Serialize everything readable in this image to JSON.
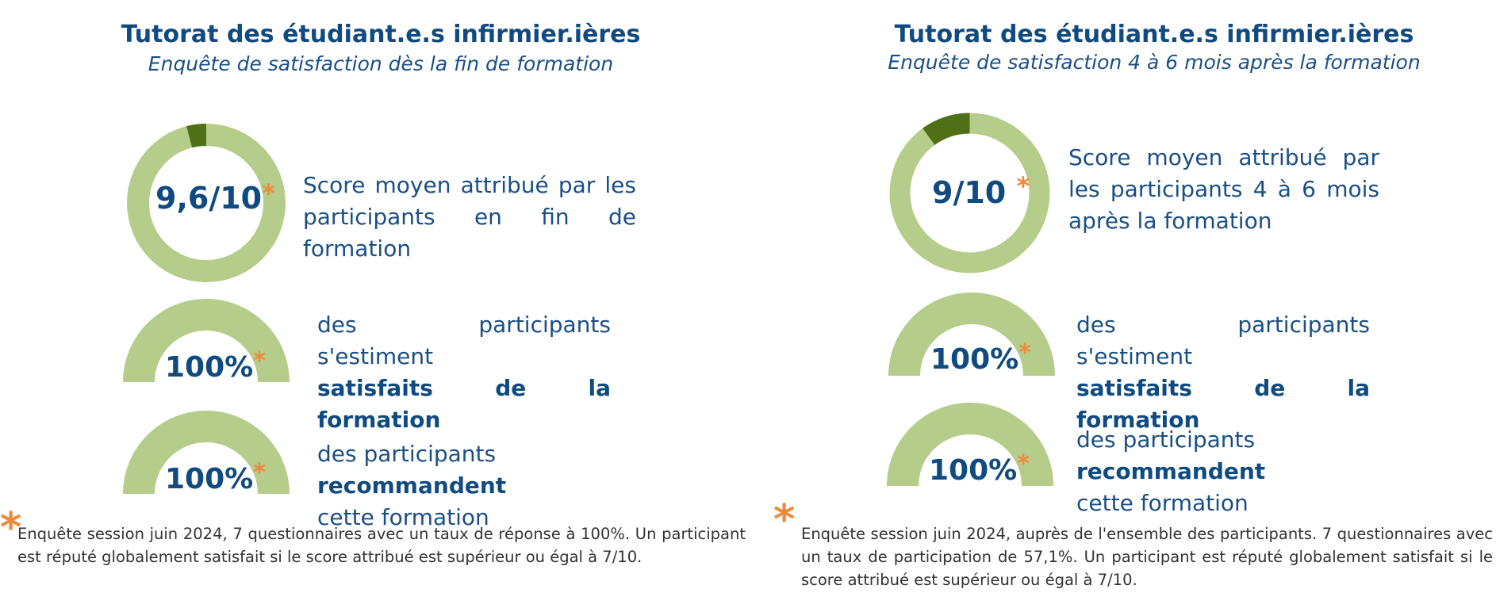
{
  "colors": {
    "ring_light": "#b5cc8a",
    "ring_dark": "#4f7016",
    "title": "#0f4a80",
    "accent_star": "#ee8a3c"
  },
  "left": {
    "title": "Tutorat des étudiant.e.s infirmier.ières",
    "subtitle": "Enquête de satisfaction dès la fin de formation",
    "score": {
      "value": "9,6/10",
      "star": "*",
      "fraction": 0.96,
      "text": "Score moyen attribué par les participants en fin de formation"
    },
    "satisfied": {
      "value": "100%",
      "star": "*",
      "text_plain": "des participants s'estiment",
      "text_bold": "satisfaits de la formation"
    },
    "recommend": {
      "value": "100%",
      "star": "*",
      "text_plain": "des participants",
      "text_bold": "recommandent",
      "text_end": "cette formation"
    },
    "footnote_star": "*",
    "footnote": "Enquête session juin 2024, 7 questionnaires avec un taux de réponse à 100%. Un participant est réputé globalement satisfait si le score attribué est supérieur ou égal à 7/10."
  },
  "right": {
    "title": "Tutorat des étudiant.e.s infirmier.ières",
    "subtitle": "Enquête de satisfaction 4 à 6 mois après la formation",
    "score": {
      "value": "9/10",
      "star": "*",
      "fraction": 0.9,
      "text": "Score moyen attribué par les participants  4 à 6 mois après la formation"
    },
    "satisfied": {
      "value": "100%",
      "star": "*",
      "text_plain": "des participants s'estiment",
      "text_bold": "satisfaits de la formation"
    },
    "recommend": {
      "value": "100%",
      "star": "*",
      "text_plain": "des participants",
      "text_bold": "recommandent",
      "text_end": "cette formation"
    },
    "footnote_star": "*",
    "footnote": "Enquête session juin 2024, auprès de l'ensemble des participants. 7 questionnaires avec un taux de participation de 57,1%. Un participant est réputé globalement satisfait si le score attribué est supérieur ou égal à 7/10."
  }
}
